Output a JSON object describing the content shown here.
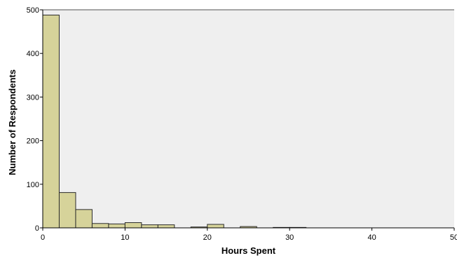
{
  "chart_data": {
    "type": "bar",
    "subtype": "histogram",
    "xlabel": "Hours Spent",
    "ylabel": "Number of Respondents",
    "xlim": [
      0,
      50
    ],
    "ylim": [
      0,
      500
    ],
    "x_ticks": [
      "0",
      "10",
      "20",
      "30",
      "40",
      "50"
    ],
    "y_ticks": [
      "0",
      "100",
      "200",
      "300",
      "400",
      "500"
    ],
    "bin_width": 2,
    "bins": [
      {
        "start": 0,
        "end": 2,
        "value": 488
      },
      {
        "start": 2,
        "end": 4,
        "value": 81
      },
      {
        "start": 4,
        "end": 6,
        "value": 42
      },
      {
        "start": 6,
        "end": 8,
        "value": 10
      },
      {
        "start": 8,
        "end": 10,
        "value": 9
      },
      {
        "start": 10,
        "end": 12,
        "value": 12
      },
      {
        "start": 12,
        "end": 14,
        "value": 7
      },
      {
        "start": 14,
        "end": 16,
        "value": 7
      },
      {
        "start": 18,
        "end": 20,
        "value": 2
      },
      {
        "start": 20,
        "end": 22,
        "value": 8
      },
      {
        "start": 24,
        "end": 26,
        "value": 3
      },
      {
        "start": 28,
        "end": 30,
        "value": 1
      },
      {
        "start": 30,
        "end": 32,
        "value": 1
      }
    ],
    "grid": false,
    "colors": {
      "bar_fill": "#d6d39a",
      "bar_stroke": "#2b2b2b",
      "plot_background": "#efefef",
      "axis": "#000000",
      "frame": "#888888"
    }
  }
}
